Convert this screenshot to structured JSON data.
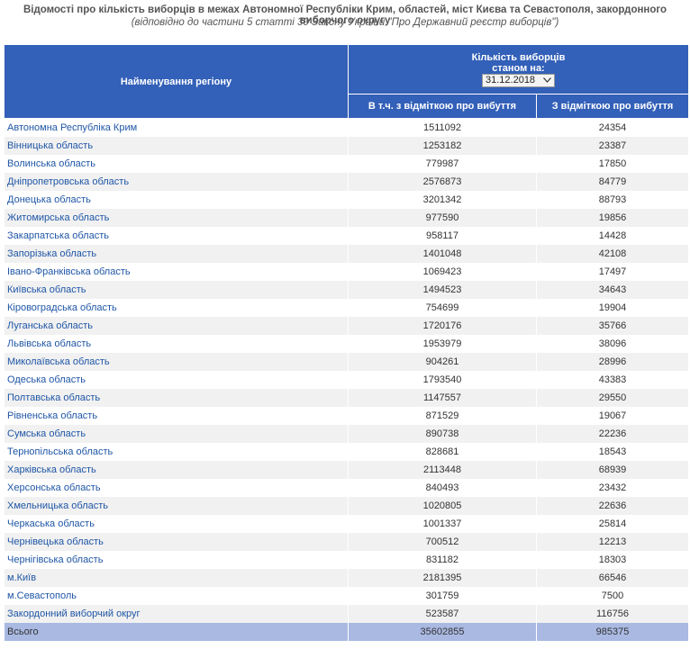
{
  "title": "Відомості про кількість виборців в межах Автономної Республіки Крим, областей, міст Києва та Севастополя, закордонного виборчого округу",
  "subtitle": "(відповідно до частини 5 статті 30 Закону України \"Про Державний реєстр виборців\")",
  "header": {
    "region": "Найменування регіону",
    "count": "Кількість виборців",
    "as_of": "станом на:",
    "date": "31.12.2018",
    "col1": "В т.ч. з відміткою про вибуття",
    "col2": "З відміткою про вибуття"
  },
  "rows": [
    [
      "Автономна Республіка Крим",
      1511092,
      24354
    ],
    [
      "Вінницька область",
      1253182,
      23387
    ],
    [
      "Волинська область",
      779987,
      17850
    ],
    [
      "Дніпропетровська область",
      2576873,
      84779
    ],
    [
      "Донецька область",
      3201342,
      88793
    ],
    [
      "Житомирська область",
      977590,
      19856
    ],
    [
      "Закарпатська область",
      958117,
      14428
    ],
    [
      "Запорізька область",
      1401048,
      42108
    ],
    [
      "Івано-Франківська область",
      1069423,
      17497
    ],
    [
      "Київська область",
      1494523,
      34643
    ],
    [
      "Кіровоградська область",
      754699,
      19904
    ],
    [
      "Луганська область",
      1720176,
      35766
    ],
    [
      "Львівська область",
      1953979,
      38096
    ],
    [
      "Миколаївська область",
      904261,
      28996
    ],
    [
      "Одеська область",
      1793540,
      43383
    ],
    [
      "Полтавська область",
      1147557,
      29550
    ],
    [
      "Рівненська область",
      871529,
      19067
    ],
    [
      "Сумська область",
      890738,
      22236
    ],
    [
      "Тернопільська область",
      828681,
      18543
    ],
    [
      "Харківська область",
      2113448,
      68939
    ],
    [
      "Херсонська область",
      840493,
      23432
    ],
    [
      "Хмельницька область",
      1020805,
      22636
    ],
    [
      "Черкаська область",
      1001337,
      25814
    ],
    [
      "Чернівецька область",
      700512,
      12213
    ],
    [
      "Чернігівська область",
      831182,
      18303
    ],
    [
      "м.Київ",
      2181395,
      66546
    ],
    [
      "м.Севастополь",
      301759,
      7500
    ],
    [
      "Закордонний виборчий округ",
      523587,
      116756
    ]
  ],
  "total": [
    "Всього",
    35602855,
    985375
  ]
}
